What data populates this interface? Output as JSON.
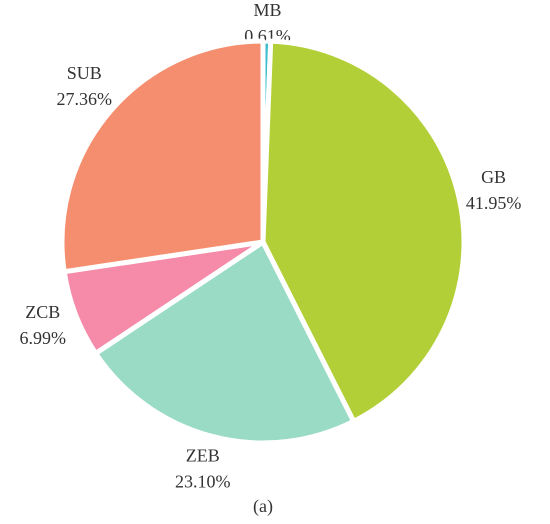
{
  "chart_data": {
    "type": "pie",
    "categories": [
      "MB",
      "GB",
      "ZEB",
      "ZCB",
      "SUB"
    ],
    "values": [
      0.61,
      41.95,
      23.1,
      6.99,
      27.36
    ],
    "value_labels": [
      "0.61%",
      "41.95%",
      "23.10%",
      "6.99%",
      "27.36%"
    ],
    "colors": [
      "#3bbfcf",
      "#b3cf37",
      "#9adbc5",
      "#f58aa9",
      "#f58e6e"
    ],
    "caption": "(a)"
  }
}
